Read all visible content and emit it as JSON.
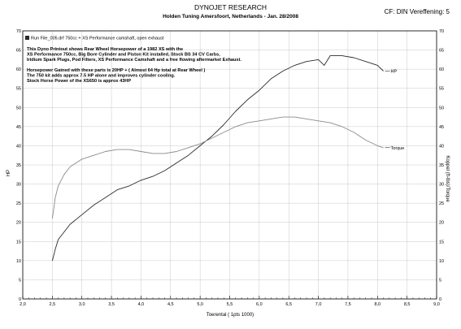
{
  "header": {
    "title": "DYNOJET RESEARCH",
    "subtitle": "Holden Tuning  Amersfoort, Netherlands - Jan. 28/2008",
    "correction": "CF: DIN  Vereffening: 5"
  },
  "chart_data": {
    "type": "line",
    "legend_entry": "Run File_005.drf  750cc + XS Performance camshaft, open exhaust",
    "xlabel": "Toerental ( 1pts 1000)",
    "ylabel_left": "HP",
    "ylabel_right": "Koppel (ft-lbs)/Torque",
    "xlim": [
      2.0,
      9.0
    ],
    "ylim": [
      0,
      70
    ],
    "x_ticks": [
      "2,0",
      "2,5",
      "3,0",
      "3,5",
      "4,0",
      "4,5",
      "5,0",
      "5,5",
      "6,0",
      "6,5",
      "7,0",
      "7,5",
      "8,0",
      "8,5",
      "9,0"
    ],
    "y_ticks": [
      "0",
      "5",
      "10",
      "15",
      "20",
      "25",
      "30",
      "35",
      "40",
      "45",
      "50",
      "55",
      "60",
      "65",
      "70"
    ],
    "annotations": [
      "This Dyno Printout shows Rear Wheel Horsepower of a 1982 XS with the",
      "XS Performance 750cc, Big Bore Cylinder and Piston Kit installed, Stock BS 34 CV Carbs,",
      "Iridium Spark Plugs, Pod Filters, XS Performance Camshaft and a free flowing aftermarket Exhaust.",
      "",
      "Horsepower Gained with these parts is 20HP + ( Almost 64 Hp total at Rear Wheel )",
      "The 750 kit adds approx 7.5 HP alone and improves cylinder cooling.",
      "Stock Horse Power of the XS650 is approx 43HP"
    ],
    "series": [
      {
        "name": "HP",
        "color": "#2a2a2a",
        "x": [
          2.5,
          2.55,
          2.6,
          2.7,
          2.8,
          3.0,
          3.2,
          3.4,
          3.6,
          3.8,
          4.0,
          4.2,
          4.4,
          4.6,
          4.8,
          5.0,
          5.2,
          5.4,
          5.6,
          5.8,
          6.0,
          6.2,
          6.4,
          6.6,
          6.8,
          7.0,
          7.1,
          7.2,
          7.4,
          7.6,
          7.8,
          8.0,
          8.1
        ],
        "values": [
          10,
          13,
          15.5,
          17.5,
          19.5,
          22,
          24.5,
          26.5,
          28.5,
          29.5,
          31,
          32,
          33.5,
          35.5,
          37.5,
          40,
          42.5,
          45.5,
          49,
          52,
          54.5,
          57.5,
          59.5,
          61,
          62,
          62.5,
          61,
          63.5,
          63.5,
          63,
          62,
          61,
          59.5
        ]
      },
      {
        "name": "Torque",
        "color": "#8a8a8a",
        "x": [
          2.5,
          2.55,
          2.6,
          2.7,
          2.8,
          3.0,
          3.2,
          3.4,
          3.6,
          3.8,
          4.0,
          4.2,
          4.4,
          4.6,
          4.8,
          5.0,
          5.2,
          5.4,
          5.6,
          5.8,
          6.0,
          6.2,
          6.4,
          6.6,
          6.8,
          7.0,
          7.2,
          7.4,
          7.6,
          7.8,
          8.0,
          8.1
        ],
        "values": [
          21,
          26.5,
          29.5,
          32.5,
          34.5,
          36.5,
          37.5,
          38.5,
          39,
          39,
          38.5,
          38,
          38,
          38.5,
          39.5,
          40.5,
          42,
          43.5,
          45,
          46,
          46.5,
          47,
          47.5,
          47.5,
          47,
          46.5,
          46,
          45,
          43.5,
          41.5,
          40,
          39.5
        ]
      }
    ],
    "grid": true
  }
}
